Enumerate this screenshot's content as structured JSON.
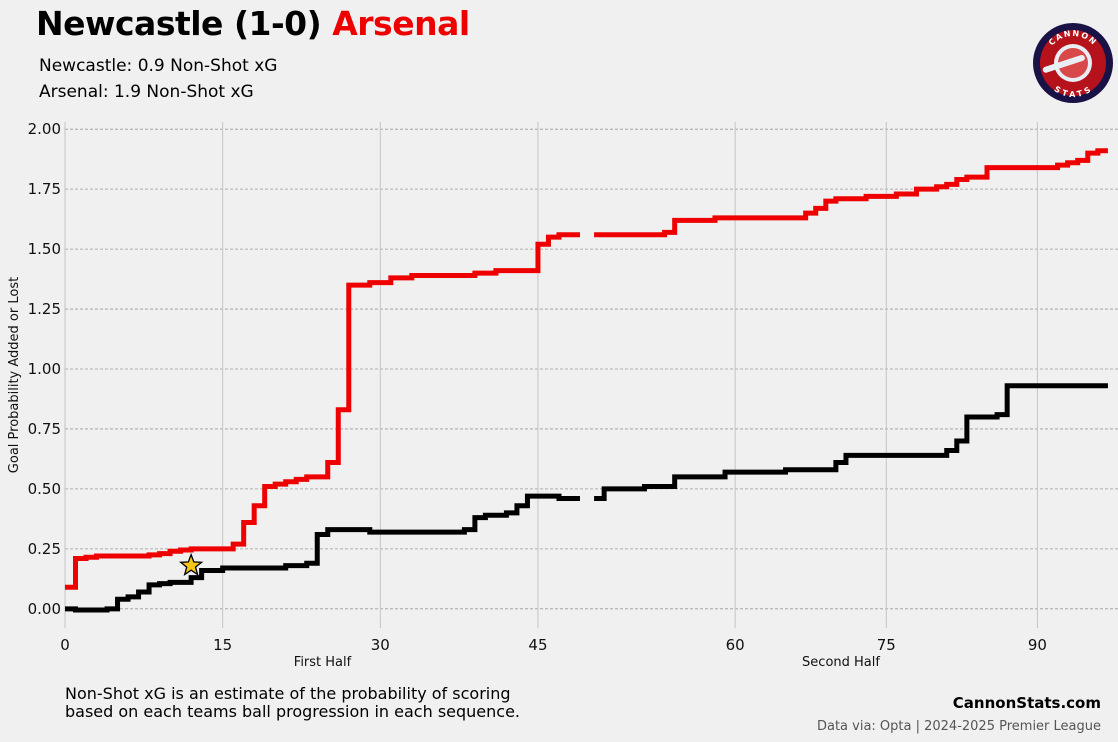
{
  "header": {
    "home_team": "Newcastle",
    "score": "(1-0)",
    "away_team": "Arsenal",
    "home_line_label": "Newcastle:",
    "home_line_value": "0.9 Non-Shot xG",
    "away_line_label": "Arsenal:",
    "away_line_value": "1.9 Non-Shot xG"
  },
  "logo": {
    "top_text": "CANNON",
    "bottom_text": "STATS",
    "icon": "cannon-stats-logo"
  },
  "colors": {
    "home": "#000000",
    "away": "#ee0000",
    "background": "#f0f0f0",
    "goal_marker": "#f5c518"
  },
  "footer": {
    "note_line1": "Non-Shot xG is an estimate of the probability of scoring",
    "note_line2": "based on each teams ball progression in each sequence.",
    "site": "CannonStats.com",
    "source": "Data via: Opta | 2024-2025 Premier League"
  },
  "chart_data": {
    "type": "line",
    "step": true,
    "ylabel": "Goal Probability Added or Lost",
    "ylim": [
      -0.08,
      2.03
    ],
    "yticks": [
      "0.00",
      "0.25",
      "0.50",
      "0.75",
      "1.00",
      "1.25",
      "1.50",
      "1.75",
      "2.00"
    ],
    "grid": true,
    "panels": [
      {
        "name": "First Half",
        "xlim": [
          0,
          49
        ],
        "xticks": [
          "0",
          "15",
          "30",
          "45"
        ],
        "series": [
          {
            "team": "Arsenal",
            "color": "#ee0000",
            "x": [
              0,
              1,
              2,
              3,
              5,
              7,
              8,
              9,
              10,
              11,
              12,
              16,
              17,
              18,
              19,
              20,
              21,
              22,
              23,
              24,
              25,
              26,
              27,
              29,
              31,
              33,
              35,
              37,
              39,
              41,
              44,
              45,
              46,
              47,
              49
            ],
            "values": [
              0.09,
              0.21,
              0.215,
              0.22,
              0.22,
              0.22,
              0.225,
              0.23,
              0.24,
              0.245,
              0.25,
              0.27,
              0.36,
              0.43,
              0.51,
              0.52,
              0.53,
              0.54,
              0.55,
              0.55,
              0.61,
              0.83,
              1.35,
              1.36,
              1.38,
              1.39,
              1.39,
              1.39,
              1.4,
              1.41,
              1.41,
              1.52,
              1.55,
              1.56,
              1.56
            ]
          },
          {
            "team": "Newcastle",
            "color": "#000000",
            "x": [
              0,
              1,
              4,
              5,
              6,
              7,
              8,
              9,
              10,
              12,
              13,
              15,
              16,
              18,
              20,
              21,
              22,
              23,
              24,
              25,
              27,
              29,
              32,
              34,
              37,
              38,
              39,
              40,
              42,
              43,
              44,
              47,
              49
            ],
            "values": [
              0.0,
              -0.005,
              0.0,
              0.04,
              0.05,
              0.07,
              0.1,
              0.105,
              0.11,
              0.13,
              0.16,
              0.17,
              0.17,
              0.17,
              0.17,
              0.18,
              0.18,
              0.19,
              0.31,
              0.33,
              0.33,
              0.32,
              0.32,
              0.32,
              0.32,
              0.33,
              0.38,
              0.39,
              0.4,
              0.43,
              0.47,
              0.46,
              0.46
            ]
          }
        ],
        "goal": {
          "team": "Newcastle",
          "minute": 12,
          "value": 0.18
        }
      },
      {
        "name": "Second Half",
        "xlim": [
          45,
          98
        ],
        "xticks": [
          "60",
          "75",
          "90"
        ],
        "series": [
          {
            "team": "Arsenal",
            "color": "#ee0000",
            "x": [
              46,
              51,
              53,
              54,
              58,
              61,
              66,
              67,
              68,
              69,
              70,
              73,
              76,
              78,
              80,
              81,
              82,
              83,
              85,
              87,
              90,
              92,
              93,
              94,
              95,
              96,
              97
            ],
            "values": [
              1.56,
              1.56,
              1.57,
              1.62,
              1.63,
              1.63,
              1.63,
              1.65,
              1.67,
              1.7,
              1.71,
              1.72,
              1.73,
              1.75,
              1.76,
              1.77,
              1.79,
              1.8,
              1.84,
              1.84,
              1.84,
              1.85,
              1.86,
              1.87,
              1.9,
              1.91,
              1.91
            ]
          },
          {
            "team": "Newcastle",
            "color": "#000000",
            "x": [
              46,
              47,
              51,
              54,
              59,
              62,
              65,
              69,
              70,
              71,
              72,
              75,
              80,
              81,
              82,
              83,
              84,
              86,
              87,
              90,
              93,
              95,
              97
            ],
            "values": [
              0.46,
              0.5,
              0.51,
              0.55,
              0.57,
              0.57,
              0.58,
              0.58,
              0.61,
              0.64,
              0.64,
              0.64,
              0.64,
              0.66,
              0.7,
              0.8,
              0.8,
              0.81,
              0.93,
              0.93,
              0.93,
              0.93,
              0.93
            ]
          }
        ]
      }
    ]
  }
}
